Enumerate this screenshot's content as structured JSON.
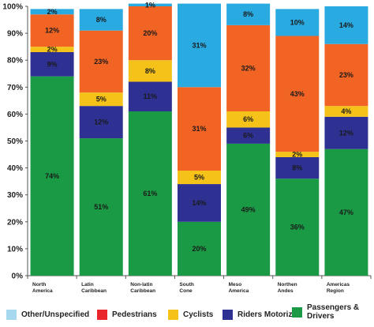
{
  "chart_data": {
    "type": "bar",
    "stacked": true,
    "title": "",
    "xlabel": "",
    "ylabel": "",
    "ylim": [
      0,
      100
    ],
    "y_ticks": [
      "0%",
      "10%",
      "20%",
      "30%",
      "40%",
      "50%",
      "60%",
      "70%",
      "80%",
      "90%",
      "100%"
    ],
    "categories": [
      [
        "North",
        "America"
      ],
      [
        "Latin",
        "Caribbean"
      ],
      [
        "Non-latin",
        "Caribbean"
      ],
      [
        "South",
        "Cone"
      ],
      [
        "Meso",
        "America"
      ],
      [
        "Northen",
        "Andes"
      ],
      [
        "Americas",
        "Region"
      ]
    ],
    "series": [
      {
        "name": "Passengers & Drivers",
        "color": "#1a9a45",
        "values": [
          74,
          51,
          61,
          20,
          49,
          36,
          47
        ],
        "labels": [
          "74%",
          "51%",
          "61%",
          "20%",
          "49%",
          "36%",
          "47%"
        ]
      },
      {
        "name": "Riders Motorized",
        "color": "#2e3192",
        "values": [
          9,
          12,
          11,
          14,
          6,
          8,
          12
        ],
        "labels": [
          "9%",
          "12%",
          "11%",
          "14%",
          "6%",
          "8%",
          "12%"
        ]
      },
      {
        "name": "Cyclists",
        "color": "#f5c21a",
        "values": [
          2,
          5,
          8,
          5,
          6,
          2,
          4
        ],
        "labels": [
          "2%",
          "5%",
          "8%",
          "5%",
          "6%",
          "2%",
          "4%"
        ]
      },
      {
        "name": "Pedestrians",
        "color": "#f26424",
        "values": [
          12,
          23,
          20,
          31,
          32,
          43,
          23
        ],
        "labels": [
          "12%",
          "23%",
          "20%",
          "31%",
          "32%",
          "43%",
          "23%"
        ]
      },
      {
        "name": "Other/Unspecified",
        "color": "#29aae1",
        "values": [
          2,
          8,
          1,
          31,
          8,
          10,
          14
        ],
        "labels": [
          "2%",
          "8%",
          "1%",
          "31%",
          "8%",
          "10%",
          "14%"
        ]
      }
    ],
    "legend": {
      "position": "bottom",
      "items": [
        {
          "label": "Other/Unspecified",
          "color": "#a6d8f0"
        },
        {
          "label": "Pedestrians",
          "color": "#e8262b"
        },
        {
          "label": "Cyclists",
          "color": "#f5c21a"
        },
        {
          "label": "Riders Motorized",
          "color": "#2e3192"
        },
        {
          "label": "Passengers & Drivers",
          "color": "#1a9a45"
        }
      ]
    }
  }
}
